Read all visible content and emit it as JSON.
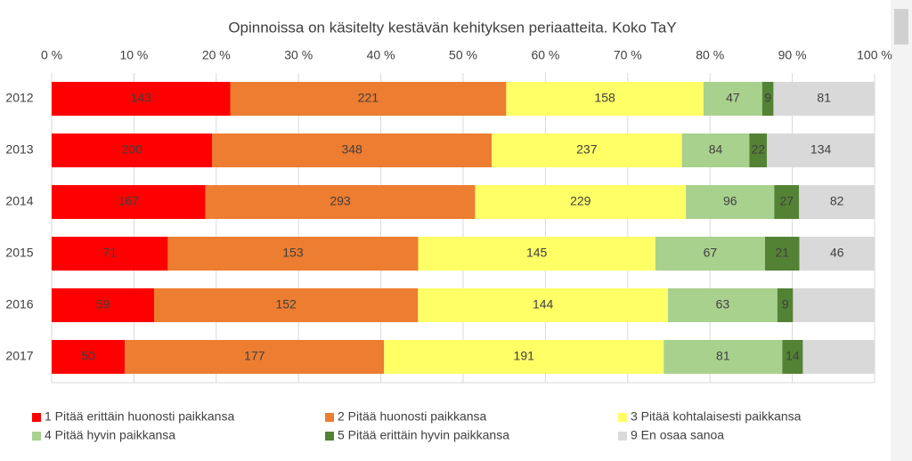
{
  "chart_data": {
    "type": "bar",
    "orientation": "horizontal",
    "stacking": "percent",
    "title": "Opinnoissa on käsitelty kestävän kehityksen periaatteita. Koko TaY",
    "categories": [
      "2012",
      "2013",
      "2014",
      "2015",
      "2016",
      "2017"
    ],
    "series": [
      {
        "name": "1 Pitää erittäin huonosti paikkansa",
        "color": "#ff0000",
        "values": [
          143,
          200,
          167,
          71,
          59,
          50
        ]
      },
      {
        "name": "2 Pitää huonosti paikkansa",
        "color": "#ed7d31",
        "values": [
          221,
          348,
          293,
          153,
          152,
          177
        ]
      },
      {
        "name": "3 Pitää kohtalaisesti paikkansa",
        "color": "#ffff66",
        "values": [
          158,
          237,
          229,
          145,
          144,
          191
        ]
      },
      {
        "name": "4 Pitää hyvin paikkansa",
        "color": "#a9d18e",
        "values": [
          47,
          84,
          96,
          67,
          63,
          81
        ]
      },
      {
        "name": "5 Pitää erittäin hyvin paikkansa",
        "color": "#548235",
        "values": [
          9,
          22,
          27,
          21,
          9,
          14
        ]
      },
      {
        "name": "9 En osaa sanoa",
        "color": "#d9d9d9",
        "values": [
          81,
          134,
          82,
          46,
          47,
          49
        ],
        "value_labels": [
          "81",
          "134",
          "82",
          "46",
          null,
          null
        ]
      }
    ],
    "xlim": [
      0,
      100
    ],
    "xticks": [
      {
        "value": 0,
        "label": "0 %"
      },
      {
        "value": 10,
        "label": "10 %"
      },
      {
        "value": 20,
        "label": "20 %"
      },
      {
        "value": 30,
        "label": "30 %"
      },
      {
        "value": 40,
        "label": "40 %"
      },
      {
        "value": 50,
        "label": "50 %"
      },
      {
        "value": 60,
        "label": "60 %"
      },
      {
        "value": 70,
        "label": "70 %"
      },
      {
        "value": 80,
        "label": "80 %"
      },
      {
        "value": 90,
        "label": "90 %"
      },
      {
        "value": 100,
        "label": "100 %"
      }
    ],
    "grid": true,
    "legend": "bottom"
  }
}
